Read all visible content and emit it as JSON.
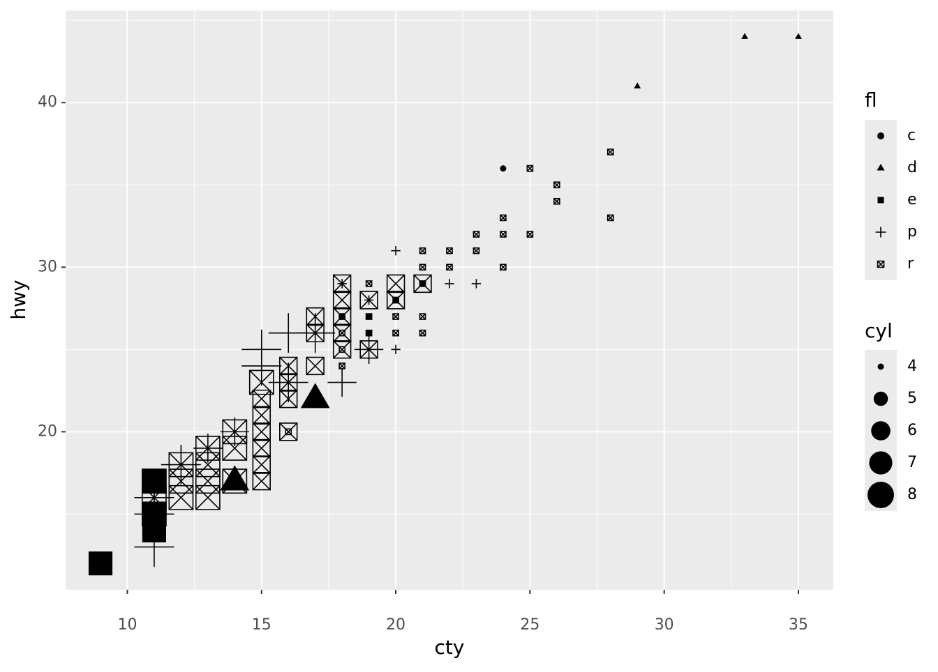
{
  "chart_data": {
    "type": "scatter",
    "x_label": "cty",
    "y_label": "hwy",
    "xlim": [
      7.7,
      36.3
    ],
    "ylim": [
      10.4,
      45.6
    ],
    "xticks": [
      10,
      15,
      20,
      25,
      30,
      35
    ],
    "yticks": [
      20,
      30,
      40
    ],
    "grid": true,
    "color": "#000000",
    "shape_legend_title": "fl",
    "size_legend_title": "cyl",
    "size_breaks": [
      4,
      5,
      6,
      7,
      8
    ],
    "series": [
      {
        "name": "c",
        "shape": "circle",
        "x": [
          24
        ],
        "y": [
          36
        ],
        "size": [
          4
        ]
      },
      {
        "name": "d",
        "shape": "triangle",
        "x": [
          33,
          35,
          29,
          17,
          14
        ],
        "y": [
          44,
          44,
          41,
          22,
          17
        ],
        "size": [
          4,
          4,
          4,
          8,
          8
        ]
      },
      {
        "name": "e",
        "shape": "square",
        "x": [
          9,
          11,
          11,
          11,
          19,
          19,
          18,
          20,
          21
        ],
        "y": [
          12,
          17,
          15,
          14,
          27,
          26,
          27,
          28,
          29
        ],
        "size": [
          8,
          8,
          8,
          8,
          4,
          4,
          4,
          4,
          4
        ]
      },
      {
        "name": "p",
        "shape": "plus",
        "x": [
          20,
          22,
          23,
          20,
          18,
          18,
          19,
          17,
          16,
          15,
          15,
          16,
          14,
          13,
          12,
          11,
          11,
          11,
          19
        ],
        "y": [
          31,
          29,
          29,
          25,
          23,
          29,
          28,
          26,
          26,
          25,
          24,
          23,
          20,
          19,
          18,
          13,
          15,
          16,
          25
        ],
        "size": [
          4,
          4,
          4,
          4,
          6,
          4,
          4,
          8,
          8,
          8,
          8,
          8,
          6,
          6,
          8,
          8,
          8,
          8,
          6
        ]
      },
      {
        "name": "r",
        "shape": "square-x",
        "x": [
          28,
          28,
          26,
          26,
          25,
          25,
          24,
          24,
          24,
          23,
          23,
          22,
          22,
          21,
          21,
          21,
          21,
          21,
          20,
          20,
          20,
          19,
          19,
          19,
          18,
          18,
          18,
          18,
          16,
          21,
          20,
          20,
          19,
          19,
          18,
          18,
          18,
          18,
          18,
          17,
          17,
          17,
          16,
          16,
          16,
          16,
          15,
          15,
          15,
          15,
          15,
          15,
          15,
          14,
          14,
          14,
          13,
          13,
          13,
          13,
          12,
          12,
          12,
          11,
          11,
          11
        ],
        "y": [
          37,
          33,
          35,
          34,
          36,
          32,
          33,
          32,
          30,
          32,
          31,
          31,
          30,
          31,
          30,
          29,
          27,
          26,
          28,
          27,
          26,
          29,
          27,
          26,
          25,
          24,
          26,
          27,
          20,
          29,
          29,
          28,
          28,
          25,
          29,
          28,
          27,
          26,
          25,
          27,
          26,
          24,
          24,
          23,
          22,
          20,
          23,
          22,
          21,
          20,
          19,
          18,
          17,
          20,
          19,
          17,
          19,
          18,
          17,
          16,
          18,
          17,
          16,
          17,
          16,
          15
        ],
        "size": [
          4,
          4,
          4,
          4,
          4,
          4,
          4,
          4,
          4,
          4,
          4,
          4,
          4,
          4,
          4,
          4,
          4,
          4,
          4,
          4,
          4,
          4,
          4,
          4,
          4,
          4,
          4,
          4,
          4,
          6,
          6,
          6,
          6,
          6,
          6,
          6,
          6,
          6,
          6,
          6,
          6,
          6,
          6,
          6,
          6,
          6,
          8,
          6,
          6,
          6,
          6,
          6,
          6,
          8,
          8,
          8,
          8,
          8,
          8,
          8,
          8,
          8,
          8,
          8,
          8,
          8
        ]
      }
    ]
  }
}
